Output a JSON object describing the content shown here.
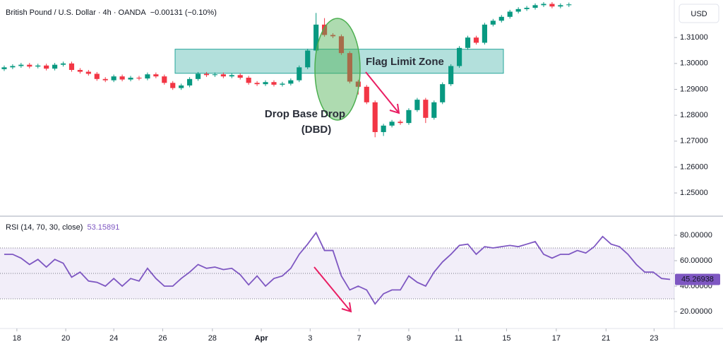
{
  "chart_data": [
    {
      "type": "candlestick",
      "title": "British Pound / U.S. Dollar · 4h · OANDA",
      "change": "−0.00131 (−0.10%)",
      "currency": "USD",
      "up_color": "#089981",
      "down_color": "#f23645",
      "open": [
        1.2978,
        1.2985,
        1.299,
        1.2995,
        1.2988,
        1.2992,
        1.298,
        1.2995,
        1.3,
        1.2975,
        1.2968,
        1.296,
        1.294,
        1.2935,
        1.295,
        1.2938,
        1.2945,
        1.2942,
        1.2958,
        1.295,
        1.2925,
        1.2905,
        1.2915,
        1.294,
        1.296,
        1.2955,
        1.2958,
        1.295,
        1.2955,
        1.2945,
        1.2925,
        1.292,
        1.2928,
        1.2918,
        1.2922,
        1.2935,
        1.2985,
        1.305,
        1.315,
        1.311,
        1.3105,
        1.304,
        1.293,
        1.291,
        1.285,
        1.2735,
        1.276,
        1.2775,
        1.277,
        1.282,
        1.286,
        1.279,
        1.285,
        1.292,
        1.299,
        1.306,
        1.31,
        1.308,
        1.315,
        1.3165,
        1.318,
        1.32,
        1.321,
        1.3215,
        1.3225,
        1.323,
        1.322,
        1.3225
      ],
      "high": [
        1.2992,
        1.2997,
        1.3002,
        1.3002,
        1.2999,
        1.2999,
        1.3002,
        1.3007,
        1.3007,
        1.2982,
        1.2975,
        1.2967,
        1.2947,
        1.2957,
        1.2957,
        1.2952,
        1.2952,
        1.2965,
        1.2965,
        1.2957,
        1.2932,
        1.2922,
        1.2947,
        1.2967,
        1.2967,
        1.2965,
        1.2965,
        1.2962,
        1.2962,
        1.2952,
        1.2932,
        1.2935,
        1.2935,
        1.2929,
        1.2942,
        1.2992,
        1.3057,
        1.3195,
        1.3175,
        1.3117,
        1.3112,
        1.3047,
        1.2937,
        1.2917,
        1.2857,
        1.2767,
        1.2782,
        1.2782,
        1.2827,
        1.2867,
        1.2867,
        1.2857,
        1.2927,
        1.2997,
        1.3067,
        1.3107,
        1.3107,
        1.3157,
        1.3172,
        1.3187,
        1.3207,
        1.3217,
        1.3222,
        1.3232,
        1.3237,
        1.3237,
        1.3232,
        1.3235
      ],
      "low": [
        1.2971,
        1.2978,
        1.2983,
        1.2981,
        1.2981,
        1.2973,
        1.2973,
        1.2988,
        1.2968,
        1.2961,
        1.2953,
        1.2933,
        1.2928,
        1.2928,
        1.2931,
        1.2931,
        1.2935,
        1.2935,
        1.2943,
        1.2918,
        1.2898,
        1.2898,
        1.2908,
        1.2933,
        1.2948,
        1.2948,
        1.2943,
        1.2943,
        1.2938,
        1.2918,
        1.2913,
        1.2913,
        1.2911,
        1.2911,
        1.2915,
        1.2928,
        1.2978,
        1.3043,
        1.3103,
        1.3098,
        1.3033,
        1.2923,
        1.288,
        1.2843,
        1.2715,
        1.272,
        1.2753,
        1.2763,
        1.2763,
        1.2813,
        1.277,
        1.2783,
        1.2843,
        1.2913,
        1.2983,
        1.3053,
        1.3073,
        1.3073,
        1.3143,
        1.3158,
        1.3173,
        1.3193,
        1.3203,
        1.3208,
        1.3218,
        1.3213,
        1.3213,
        1.3218
      ],
      "close": [
        1.2985,
        1.299,
        1.2995,
        1.2988,
        1.2992,
        1.298,
        1.2995,
        1.3,
        1.2975,
        1.2968,
        1.296,
        1.294,
        1.2935,
        1.295,
        1.2938,
        1.2945,
        1.2942,
        1.2958,
        1.295,
        1.2925,
        1.2905,
        1.2915,
        1.294,
        1.296,
        1.2955,
        1.2958,
        1.295,
        1.2955,
        1.2945,
        1.2925,
        1.292,
        1.2928,
        1.2918,
        1.2922,
        1.2935,
        1.2985,
        1.305,
        1.315,
        1.311,
        1.3105,
        1.304,
        1.293,
        1.291,
        1.285,
        1.2735,
        1.276,
        1.2775,
        1.277,
        1.282,
        1.286,
        1.279,
        1.285,
        1.292,
        1.299,
        1.306,
        1.31,
        1.308,
        1.315,
        1.3165,
        1.318,
        1.32,
        1.321,
        1.3215,
        1.3225,
        1.323,
        1.322,
        1.3225,
        1.3228
      ],
      "xlim": [
        -0.5,
        79.5
      ],
      "ylim": [
        1.2413,
        1.3245
      ],
      "yticks": [
        {
          "value": 1.25,
          "label": "1.25000"
        },
        {
          "value": 1.26,
          "label": "1.26000"
        },
        {
          "value": 1.27,
          "label": "1.27000"
        },
        {
          "value": 1.28,
          "label": "1.28000"
        },
        {
          "value": 1.29,
          "label": "1.29000"
        },
        {
          "value": 1.3,
          "label": "1.30000"
        },
        {
          "value": 1.31,
          "label": "1.31000"
        }
      ],
      "zone": {
        "label": "Flag Limit Zone",
        "range": [
          1.2962,
          1.3055
        ]
      },
      "annotation": [
        "Drop Base Drop",
        "(DBD)"
      ]
    },
    {
      "type": "line",
      "title": "RSI (14, 70, 30, close)",
      "legend_value": "53.15891",
      "color": "#7e57c2",
      "values": [
        65,
        65,
        62,
        57,
        61,
        55,
        61,
        58,
        47,
        51,
        44,
        43,
        40,
        46,
        40,
        46,
        44,
        54,
        46,
        40,
        40,
        46,
        51,
        57,
        54,
        55,
        53,
        54,
        49,
        41,
        48,
        40,
        46,
        48,
        54,
        65,
        73,
        82,
        68,
        68,
        48,
        37,
        40,
        37,
        26,
        34,
        37,
        37,
        48,
        43,
        40,
        51,
        59,
        65,
        72,
        73,
        65,
        71,
        70,
        71,
        72,
        71,
        73,
        75,
        65,
        62,
        65,
        65,
        68,
        66,
        71,
        79,
        73,
        71,
        65,
        57,
        51,
        51,
        46,
        45.26938
      ],
      "levels": [
        70,
        50,
        30
      ],
      "xlim": [
        -0.5,
        79.5
      ],
      "ylim": [
        6.7,
        94.4
      ],
      "yticks": [
        {
          "value": 20,
          "label": "20.00000"
        },
        {
          "value": 40,
          "label": "40.00000"
        },
        {
          "value": 60,
          "label": "60.00000"
        },
        {
          "value": 80,
          "label": "80.00000"
        }
      ],
      "xticks": [
        {
          "value": 1.5,
          "label": "18"
        },
        {
          "value": 7.3,
          "label": "20"
        },
        {
          "value": 13,
          "label": "24"
        },
        {
          "value": 18.8,
          "label": "26"
        },
        {
          "value": 24.7,
          "label": "28"
        },
        {
          "value": 30.5,
          "label": "Apr"
        },
        {
          "value": 36.3,
          "label": "3"
        },
        {
          "value": 42.1,
          "label": "7"
        },
        {
          "value": 48,
          "label": "9"
        },
        {
          "value": 53.9,
          "label": "11"
        },
        {
          "value": 59.6,
          "label": "15"
        },
        {
          "value": 65.5,
          "label": "17"
        },
        {
          "value": 71.4,
          "label": "21"
        },
        {
          "value": 77.1,
          "label": "23"
        }
      ]
    }
  ]
}
